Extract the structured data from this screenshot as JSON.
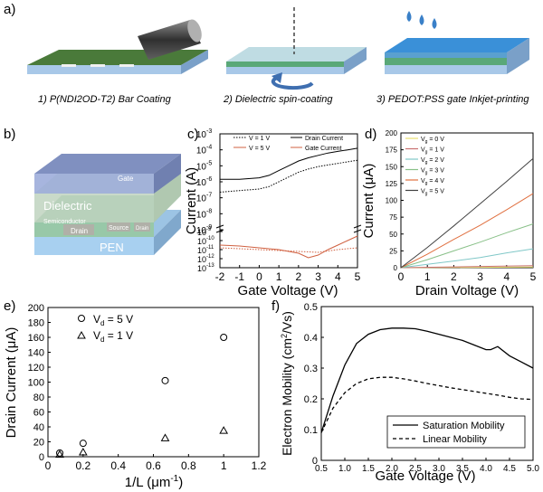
{
  "panels": {
    "a": {
      "label": "a)",
      "steps": [
        "1) P(NDI2OD-T2) Bar Coating",
        "2) Dielectric spin-coating",
        "3) PEDOT:PSS gate Inkjet-printing"
      ]
    },
    "b": {
      "label": "b)",
      "layers": [
        "Gate",
        "Dielectric",
        "Semiconductor",
        "Drain",
        "Source",
        "Drain",
        "PEN"
      ]
    }
  },
  "chart_data": [
    {
      "panel": "c)",
      "type": "line",
      "xlabel": "Gate Voltage (V)",
      "ylabel": "Current (A)",
      "xlim": [
        -2,
        5
      ],
      "xticks": [
        "-2",
        "-1",
        "0",
        "1",
        "2",
        "3",
        "4",
        "5"
      ],
      "upper_yticks": [
        "10",
        "10",
        "10",
        "10",
        "10",
        "10",
        "10"
      ],
      "upper_yexp": [
        "-3",
        "-4",
        "-5",
        "-6",
        "-7",
        "-8",
        "-9"
      ],
      "lower_yticks": [
        "10",
        "10",
        "10",
        "10",
        "10"
      ],
      "lower_yexp": [
        "-9",
        "-10",
        "-11",
        "-12",
        "-13"
      ],
      "legend": [
        "V  = 1 V",
        "V  = 5 V",
        "Drain Current",
        "Gate Current"
      ],
      "legend_sub": "d",
      "series": [
        {
          "name": "Drain Current V = 5 V",
          "style": "solid",
          "x": [
            -2,
            -1,
            0,
            0.5,
            1,
            1.5,
            2,
            2.5,
            3,
            3.5,
            4,
            4.5,
            5
          ],
          "y_log": [
            -5.85,
            -5.85,
            -5.75,
            -5.6,
            -5.3,
            -5.0,
            -4.7,
            -4.5,
            -4.35,
            -4.2,
            -4.1,
            -4.0,
            -3.9
          ]
        },
        {
          "name": "Drain Current V = 1 V",
          "style": "dotted",
          "x": [
            -2,
            -1,
            0,
            0.5,
            1,
            1.5,
            2,
            2.5,
            3,
            3.5,
            4,
            4.5,
            5
          ],
          "y_log": [
            -6.65,
            -6.55,
            -6.45,
            -6.3,
            -6.0,
            -5.7,
            -5.4,
            -5.2,
            -5.05,
            -4.95,
            -4.85,
            -4.75,
            -4.65
          ]
        },
        {
          "name": "Gate Current V = 5 V",
          "style": "solid-red",
          "x": [
            -2,
            -1,
            0,
            1,
            2,
            2.5,
            3,
            3.5,
            4,
            4.5,
            5
          ],
          "y_log": [
            -10.5,
            -10.6,
            -10.8,
            -11.0,
            -11.4,
            -11.9,
            -11.6,
            -11.0,
            -10.5,
            -10.0,
            -9.5
          ]
        },
        {
          "name": "Gate Current V = 1 V",
          "style": "dotted-red",
          "x": [
            -2,
            -1,
            0,
            1,
            2,
            3,
            4,
            5
          ],
          "y_log": [
            -10.8,
            -10.9,
            -11.0,
            -11.1,
            -11.2,
            -11.3,
            -11.0,
            -10.8
          ]
        }
      ]
    },
    {
      "panel": "d)",
      "type": "line",
      "xlabel": "Drain Voltage (V)",
      "ylabel": "Current (μA)",
      "xlim": [
        0,
        5
      ],
      "ylim": [
        0,
        200
      ],
      "xticks": [
        "0",
        "1",
        "2",
        "3",
        "4",
        "5"
      ],
      "yticks": [
        "0",
        "25",
        "50",
        "75",
        "100",
        "125",
        "150",
        "175",
        "200"
      ],
      "series": [
        {
          "name": "V  = 0 V",
          "color": "#e8e070",
          "x": [
            0,
            5
          ],
          "y": [
            0,
            1
          ]
        },
        {
          "name": "V  = 1 V",
          "color": "#c87070",
          "x": [
            0,
            5
          ],
          "y": [
            0,
            3
          ]
        },
        {
          "name": "V  = 2 V",
          "color": "#80c8c8",
          "x": [
            0,
            1,
            2,
            3,
            4,
            5
          ],
          "y": [
            0,
            5,
            10,
            15,
            22,
            28
          ]
        },
        {
          "name": "V  = 3 V",
          "color": "#88c088",
          "x": [
            0,
            1,
            2,
            3,
            4,
            5
          ],
          "y": [
            0,
            12,
            25,
            38,
            52,
            65
          ]
        },
        {
          "name": "V  = 4 V",
          "color": "#e07040",
          "x": [
            0,
            1,
            2,
            3,
            4,
            5
          ],
          "y": [
            0,
            20,
            42,
            63,
            86,
            110
          ]
        },
        {
          "name": "V  = 5 V",
          "color": "#404040",
          "x": [
            0,
            1,
            2,
            3,
            4,
            5
          ],
          "y": [
            0,
            30,
            62,
            95,
            128,
            162
          ]
        }
      ],
      "legend_sub": "g"
    },
    {
      "panel": "e)",
      "type": "scatter",
      "xlabel": "1/L (μm",
      "xlabel_sup": "-1",
      "xlabel_end": ")",
      "ylabel": "Drain Current (μA)",
      "xlim": [
        0,
        1.2
      ],
      "ylim": [
        0,
        200
      ],
      "xticks": [
        "0",
        "0.2",
        "0.4",
        "0.6",
        "0.8",
        "1",
        "1.2"
      ],
      "yticks": [
        "0",
        "20",
        "40",
        "60",
        "80",
        "100",
        "120",
        "140",
        "160",
        "180",
        "200"
      ],
      "series": [
        {
          "name": "V  = 5 V",
          "marker": "circle",
          "x": [
            0.067,
            0.2,
            0.667,
            1.0
          ],
          "y": [
            5,
            18,
            102,
            160
          ]
        },
        {
          "name": "V  = 1 V",
          "marker": "triangle",
          "x": [
            0.067,
            0.2,
            0.667,
            1.0
          ],
          "y": [
            3,
            6,
            25,
            35
          ]
        }
      ],
      "legend_sub": "d"
    },
    {
      "panel": "f)",
      "type": "line",
      "xlabel": "Gate Voltage (V)",
      "ylabel": "Electron Mobility (cm",
      "ylabel_sup": "2",
      "ylabel_end": "/Vs)",
      "xlim": [
        0.5,
        5.0
      ],
      "ylim": [
        0,
        0.5
      ],
      "xticks": [
        "0.5",
        "1.0",
        "1.5",
        "2.0",
        "2.5",
        "3.0",
        "3.5",
        "4.0",
        "4.5",
        "5.0"
      ],
      "yticks": [
        "0",
        "0.1",
        "0.2",
        "0.3",
        "0.4",
        "0.5"
      ],
      "series": [
        {
          "name": "Saturation Mobility",
          "style": "solid",
          "x": [
            0.5,
            0.75,
            1.0,
            1.25,
            1.5,
            1.75,
            2.0,
            2.25,
            2.5,
            2.75,
            3.0,
            3.25,
            3.5,
            3.75,
            4.0,
            4.1,
            4.25,
            4.5,
            4.75,
            5.0
          ],
          "y": [
            0.09,
            0.21,
            0.31,
            0.38,
            0.41,
            0.425,
            0.43,
            0.43,
            0.428,
            0.42,
            0.41,
            0.4,
            0.39,
            0.375,
            0.36,
            0.36,
            0.37,
            0.34,
            0.32,
            0.3
          ]
        },
        {
          "name": "Linear Mobility",
          "style": "dashed",
          "x": [
            0.5,
            0.75,
            1.0,
            1.25,
            1.5,
            1.75,
            2.0,
            2.25,
            2.5,
            2.75,
            3.0,
            3.25,
            3.5,
            3.75,
            4.0,
            4.25,
            4.5,
            4.75,
            5.0
          ],
          "y": [
            0.09,
            0.17,
            0.22,
            0.25,
            0.265,
            0.27,
            0.27,
            0.265,
            0.258,
            0.25,
            0.243,
            0.236,
            0.23,
            0.224,
            0.218,
            0.212,
            0.205,
            0.2,
            0.198
          ]
        }
      ]
    }
  ]
}
